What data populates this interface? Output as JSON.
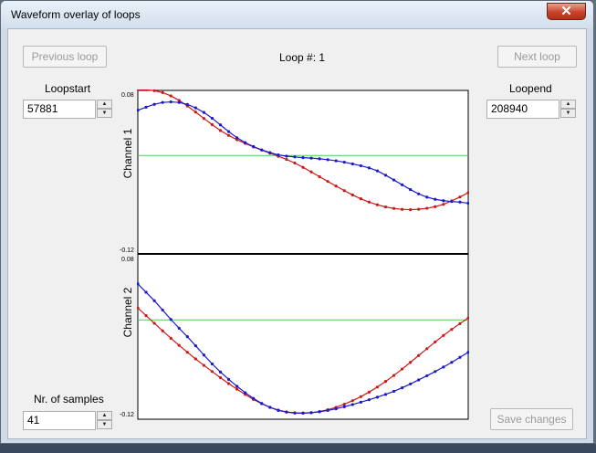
{
  "window": {
    "title": "Waveform overlay of loops",
    "close_glyph": "✕"
  },
  "header": {
    "prev_button": "Previous loop",
    "loop_label": "Loop #: 1",
    "next_button": "Next loop"
  },
  "loopstart": {
    "label": "Loopstart",
    "value": "57881"
  },
  "loopend": {
    "label": "Loopend",
    "value": "208940"
  },
  "samples": {
    "label": "Nr. of samples",
    "value": "41"
  },
  "save_button": "Save changes",
  "colors": {
    "series_red": "#cc1a1a",
    "series_blue": "#1a1acc",
    "zero_line": "#55cc55",
    "disabled_text": "#9a9a9a"
  },
  "chart_data": [
    {
      "type": "line",
      "ylabel": "Channel 1",
      "ylim_labels": [
        "0.08",
        "-0.12"
      ],
      "ylim": [
        -0.12,
        0.08
      ],
      "zero_line": 0,
      "series": [
        {
          "color": "red",
          "values": [
            0.081,
            0.0808,
            0.0797,
            0.0773,
            0.0733,
            0.0677,
            0.0609,
            0.0533,
            0.0455,
            0.0379,
            0.0307,
            0.0246,
            0.0194,
            0.0148,
            0.0105,
            0.0065,
            0.0028,
            -0.001,
            -0.0049,
            -0.0093,
            -0.0146,
            -0.0203,
            -0.0262,
            -0.032,
            -0.0377,
            -0.0433,
            -0.0486,
            -0.0533,
            -0.0574,
            -0.0607,
            -0.0634,
            -0.0652,
            -0.0663,
            -0.0667,
            -0.0662,
            -0.065,
            -0.063,
            -0.0601,
            -0.0559,
            -0.0511,
            -0.0458
          ]
        },
        {
          "color": "blue",
          "values": [
            0.0556,
            0.0594,
            0.0629,
            0.0652,
            0.0659,
            0.0652,
            0.0628,
            0.0585,
            0.0529,
            0.0458,
            0.0376,
            0.0293,
            0.0218,
            0.0158,
            0.0109,
            0.0069,
            0.0035,
            0.0007,
            -0.0009,
            -0.0018,
            -0.0027,
            -0.0033,
            -0.0041,
            -0.0052,
            -0.0066,
            -0.0083,
            -0.0104,
            -0.0126,
            -0.0153,
            -0.019,
            -0.0243,
            -0.0302,
            -0.0361,
            -0.042,
            -0.0473,
            -0.0513,
            -0.054,
            -0.0557,
            -0.0567,
            -0.0574,
            -0.0587
          ]
        }
      ]
    },
    {
      "type": "line",
      "ylabel": "Channel 2",
      "ylim_labels": [
        "0.08",
        "-0.12"
      ],
      "ylim": [
        -0.12,
        0.08
      ],
      "zero_line": 0,
      "series": [
        {
          "color": "red",
          "values": [
            0.0146,
            0.0052,
            -0.0042,
            -0.0135,
            -0.0226,
            -0.0314,
            -0.0399,
            -0.0481,
            -0.056,
            -0.0636,
            -0.0711,
            -0.0784,
            -0.0853,
            -0.0918,
            -0.0979,
            -0.1032,
            -0.1076,
            -0.111,
            -0.1132,
            -0.1143,
            -0.1147,
            -0.1142,
            -0.1128,
            -0.1106,
            -0.1076,
            -0.1038,
            -0.0994,
            -0.0945,
            -0.0889,
            -0.0827,
            -0.0758,
            -0.0684,
            -0.0605,
            -0.0523,
            -0.0439,
            -0.0355,
            -0.0272,
            -0.0192,
            -0.0118,
            -0.0047,
            0.0022
          ]
        },
        {
          "color": "blue",
          "values": [
            0.0443,
            0.0339,
            0.0236,
            0.0121,
            0.0005,
            -0.0103,
            -0.0207,
            -0.0319,
            -0.0433,
            -0.0542,
            -0.0642,
            -0.0732,
            -0.0817,
            -0.0896,
            -0.0967,
            -0.1028,
            -0.1077,
            -0.1114,
            -0.1136,
            -0.1147,
            -0.1148,
            -0.1142,
            -0.1131,
            -0.1115,
            -0.1094,
            -0.1069,
            -0.1042,
            -0.1013,
            -0.0983,
            -0.0951,
            -0.0917,
            -0.0879,
            -0.0836,
            -0.0789,
            -0.0739,
            -0.0688,
            -0.0636,
            -0.0581,
            -0.0523,
            -0.0461,
            -0.0399
          ]
        }
      ]
    }
  ]
}
